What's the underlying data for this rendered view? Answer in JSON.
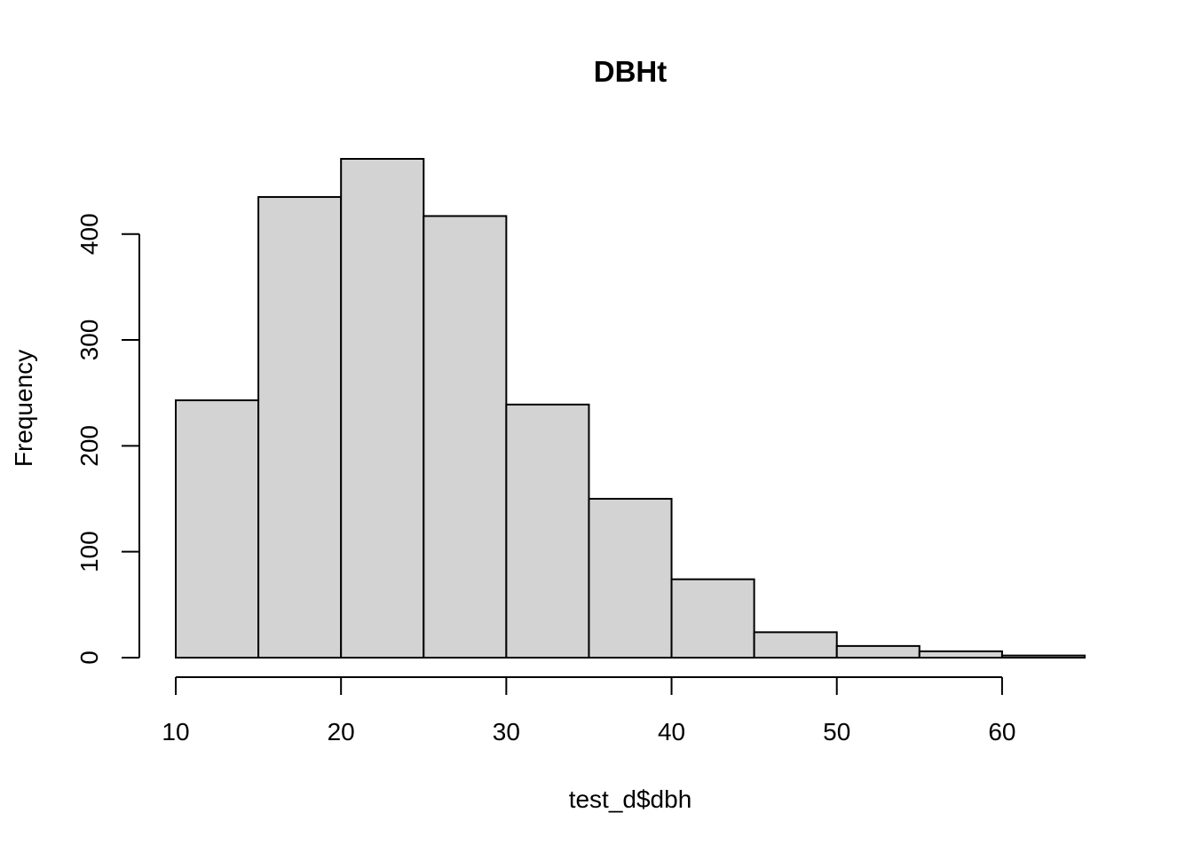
{
  "chart_data": {
    "type": "bar",
    "title": "DBHt",
    "xlabel": "test_d$dbh",
    "ylabel": "Frequency",
    "bin_edges": [
      10,
      15,
      20,
      25,
      30,
      35,
      40,
      45,
      50,
      55,
      60,
      65
    ],
    "values": [
      243,
      435,
      471,
      417,
      239,
      150,
      74,
      24,
      11,
      6,
      2
    ],
    "xlim": [
      10,
      65
    ],
    "ylim": [
      0,
      471
    ],
    "x_ticks": [
      10,
      20,
      30,
      40,
      50,
      60
    ],
    "y_ticks": [
      0,
      100,
      200,
      300,
      400
    ],
    "bar_color": "#d3d3d3",
    "grid": false
  }
}
